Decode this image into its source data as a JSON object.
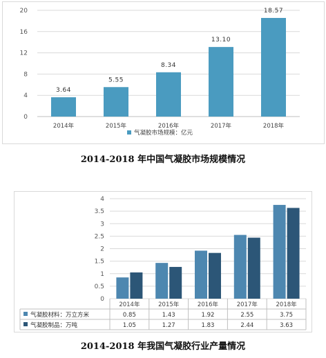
{
  "captions": {
    "chart1": "2014-2018 年中国气凝胶市场规模情况",
    "chart2": "2014-2018 年我国气凝胶行业产量情况"
  },
  "colors": {
    "bar1": "#4a9bc0",
    "series_a": "#4d87b0",
    "series_b": "#2c5677",
    "grid": "#d9d9d9",
    "axis": "#bfbfbf"
  },
  "chart_data": [
    {
      "type": "bar",
      "categories": [
        "2014年",
        "2015年",
        "2016年",
        "2017年",
        "2018年"
      ],
      "series": [
        {
          "name": "气凝胶市场规模：亿元",
          "values": [
            3.64,
            5.55,
            8.34,
            13.1,
            18.57
          ]
        }
      ],
      "value_labels": [
        "3.64",
        "5.55",
        "8.34",
        "13.10",
        "18.57"
      ],
      "ylim": [
        0,
        20
      ],
      "yticks": [
        "0",
        "4",
        "8",
        "12",
        "16",
        "20"
      ],
      "grid": true,
      "legend": "bottom"
    },
    {
      "type": "bar",
      "categories": [
        "2014年",
        "2015年",
        "2016年",
        "2017年",
        "2018年"
      ],
      "series": [
        {
          "name": "气凝胶材料：万立方米",
          "values": [
            0.85,
            1.43,
            1.92,
            2.55,
            3.75
          ],
          "labels": [
            "0.85",
            "1.43",
            "1.92",
            "2.55",
            "3.75"
          ]
        },
        {
          "name": "气凝胶制品：万吨",
          "values": [
            1.05,
            1.27,
            1.83,
            2.44,
            3.63
          ],
          "labels": [
            "1.05",
            "1.27",
            "1.83",
            "2.44",
            "3.63"
          ]
        }
      ],
      "ylim": [
        0,
        4
      ],
      "yticks": [
        "0",
        "0.5",
        "1",
        "1.5",
        "2",
        "2.5",
        "3",
        "3.5",
        "4"
      ],
      "grid": true,
      "legend": "data-table-below"
    }
  ]
}
